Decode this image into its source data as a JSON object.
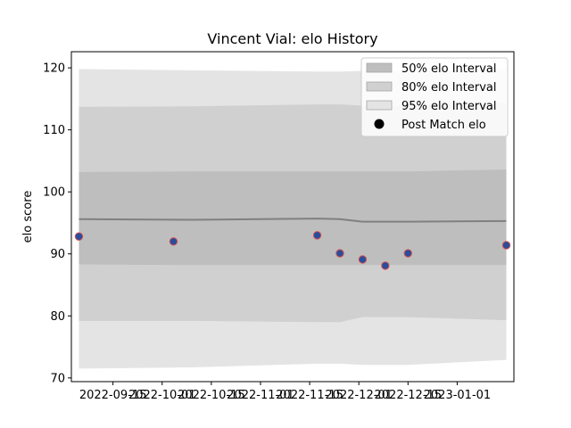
{
  "chart_data": {
    "type": "area",
    "title": "Vincent Vial: elo History",
    "xlabel": "",
    "ylabel": "elo score",
    "ylim": [
      69.4,
      122.6
    ],
    "xlim": [
      "2022-09-13",
      "2023-01-08"
    ],
    "yticks": [
      70,
      80,
      90,
      100,
      110,
      120
    ],
    "xticks": [
      {
        "date": "2022-09-24",
        "label": "2022-09-15"
      },
      {
        "date": "2022-10-07",
        "label": "2022-10-01"
      },
      {
        "date": "2022-10-20",
        "label": "2022-10-15"
      },
      {
        "date": "2022-11-02",
        "label": "2022-11-01"
      },
      {
        "date": "2022-11-15",
        "label": "2022-11-15"
      },
      {
        "date": "2022-11-28",
        "label": "2022-12-01"
      },
      {
        "date": "2022-12-11",
        "label": "2022-12-15"
      },
      {
        "date": "2022-12-24",
        "label": "2023-01-01"
      }
    ],
    "series": [
      {
        "name": "95% elo Interval",
        "kind": "band",
        "color": "#e4e4e4",
        "x": [
          "2022-09-15",
          "2022-10-15",
          "2022-11-17",
          "2022-11-23",
          "2022-11-29",
          "2022-12-05",
          "2022-12-11",
          "2023-01-06"
        ],
        "lower": [
          71.5,
          71.7,
          72.3,
          72.3,
          72.1,
          72.1,
          72.1,
          72.9
        ],
        "upper": [
          119.8,
          119.6,
          119.4,
          119.4,
          119.5,
          119.5,
          119.5,
          119.8
        ]
      },
      {
        "name": "80% elo Interval",
        "kind": "band",
        "color": "#d0d0d0",
        "x": [
          "2022-09-15",
          "2022-10-15",
          "2022-11-17",
          "2022-11-23",
          "2022-11-29",
          "2022-12-05",
          "2022-12-11",
          "2023-01-06"
        ],
        "lower": [
          79.2,
          79.2,
          79.0,
          79.0,
          79.8,
          79.8,
          79.8,
          79.3
        ],
        "upper": [
          113.7,
          113.8,
          114.1,
          114.1,
          113.9,
          113.9,
          113.9,
          114.4
        ]
      },
      {
        "name": "50% elo Interval",
        "kind": "band",
        "color": "#bebebe",
        "x": [
          "2022-09-15",
          "2022-10-15",
          "2022-11-17",
          "2022-11-23",
          "2022-11-29",
          "2022-12-05",
          "2022-12-11",
          "2023-01-06"
        ],
        "lower": [
          88.3,
          88.2,
          88.2,
          88.2,
          88.2,
          88.2,
          88.2,
          88.2
        ],
        "upper": [
          103.2,
          103.3,
          103.3,
          103.3,
          103.3,
          103.3,
          103.3,
          103.6
        ]
      },
      {
        "name": "",
        "kind": "line",
        "color": "#808080",
        "x": [
          "2022-09-15",
          "2022-10-15",
          "2022-11-17",
          "2022-11-23",
          "2022-11-29",
          "2022-12-05",
          "2022-12-11",
          "2023-01-06"
        ],
        "values": [
          95.6,
          95.5,
          95.7,
          95.6,
          95.2,
          95.2,
          95.2,
          95.3
        ]
      },
      {
        "name": "Post Match elo",
        "kind": "scatter",
        "color": "#2a4d9c",
        "edge_color": "#d9534f",
        "x": [
          "2022-09-15",
          "2022-10-10",
          "2022-11-17",
          "2022-11-23",
          "2022-11-29",
          "2022-12-05",
          "2022-12-11",
          "2023-01-06"
        ],
        "values": [
          92.8,
          92.0,
          93.0,
          90.1,
          89.1,
          88.1,
          90.1,
          91.4
        ]
      }
    ],
    "legend": {
      "placement": "top-right",
      "entries": [
        "50% elo Interval",
        "80% elo Interval",
        "95% elo Interval",
        "Post Match elo"
      ]
    },
    "grid": false
  }
}
